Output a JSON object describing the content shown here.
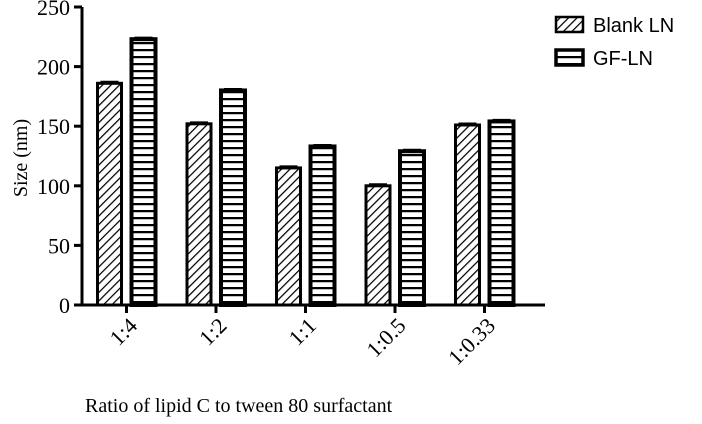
{
  "chart_data": {
    "type": "bar",
    "title": "",
    "xlabel": "Ratio of lipid C to tween 80 surfactant",
    "ylabel": "Size (nm)",
    "ylim": [
      0,
      250
    ],
    "yticks": [
      "0",
      "50",
      "100",
      "150",
      "200",
      "250"
    ],
    "categories": [
      "1:4",
      "1:2",
      "1:1",
      "1:0.5",
      "1:0.33"
    ],
    "series": [
      {
        "name": "Blank LN",
        "pattern": "diagonal-hatch",
        "values": [
          186,
          152,
          115,
          100,
          151
        ]
      },
      {
        "name": "GF-LN",
        "pattern": "horizontal-lines",
        "values": [
          223,
          180,
          133,
          129,
          154
        ]
      }
    ],
    "grid": false,
    "legend_position": "top-right",
    "error_bars": true
  }
}
